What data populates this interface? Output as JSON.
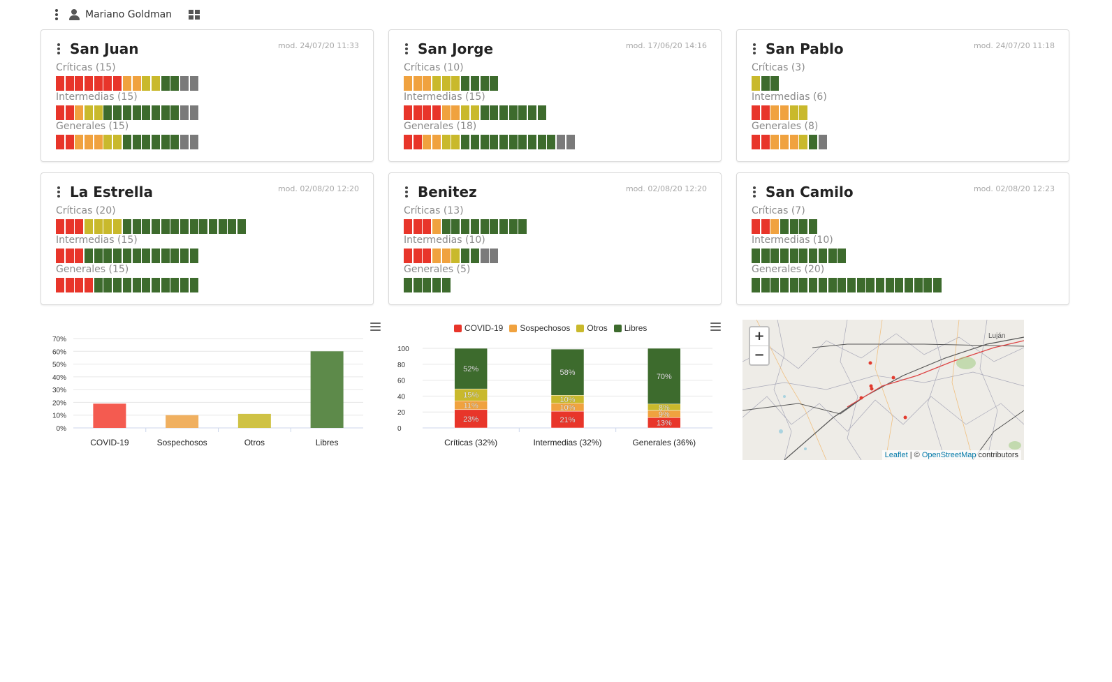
{
  "user": {
    "name": "Mariano Goldman",
    "icon": "user-icon"
  },
  "colors": {
    "red": "#e8352a",
    "orange": "#f0a23f",
    "yellow": "#c9b92c",
    "green": "#3d6b2d",
    "gray": "#7a7a7a"
  },
  "hospitals": [
    {
      "name": "San Juan",
      "modified": "mod. 24/07/20 11:33",
      "rows": [
        {
          "label": "Críticas (15)",
          "beds": [
            "red",
            "red",
            "red",
            "red",
            "red",
            "red",
            "red",
            "orange",
            "orange",
            "yellow",
            "yellow",
            "green",
            "green",
            "gray",
            "gray"
          ]
        },
        {
          "label": "Intermedias (15)",
          "beds": [
            "red",
            "red",
            "orange",
            "yellow",
            "yellow",
            "green",
            "green",
            "green",
            "green",
            "green",
            "green",
            "green",
            "green",
            "gray",
            "gray"
          ]
        },
        {
          "label": "Generales (15)",
          "beds": [
            "red",
            "red",
            "orange",
            "orange",
            "orange",
            "yellow",
            "yellow",
            "green",
            "green",
            "green",
            "green",
            "green",
            "green",
            "gray",
            "gray"
          ]
        }
      ]
    },
    {
      "name": "San Jorge",
      "modified": "mod. 17/06/20 14:16",
      "rows": [
        {
          "label": "Críticas (10)",
          "beds": [
            "orange",
            "orange",
            "orange",
            "yellow",
            "yellow",
            "yellow",
            "green",
            "green",
            "green",
            "green"
          ]
        },
        {
          "label": "Intermedias (15)",
          "beds": [
            "red",
            "red",
            "red",
            "red",
            "orange",
            "orange",
            "yellow",
            "yellow",
            "green",
            "green",
            "green",
            "green",
            "green",
            "green",
            "green"
          ]
        },
        {
          "label": "Generales (18)",
          "beds": [
            "red",
            "red",
            "orange",
            "orange",
            "yellow",
            "yellow",
            "green",
            "green",
            "green",
            "green",
            "green",
            "green",
            "green",
            "green",
            "green",
            "green",
            "gray",
            "gray"
          ]
        }
      ]
    },
    {
      "name": "San Pablo",
      "modified": "mod. 24/07/20 11:18",
      "rows": [
        {
          "label": "Críticas (3)",
          "beds": [
            "yellow",
            "green",
            "green"
          ]
        },
        {
          "label": "Intermedias (6)",
          "beds": [
            "red",
            "red",
            "orange",
            "orange",
            "yellow",
            "yellow"
          ]
        },
        {
          "label": "Generales (8)",
          "beds": [
            "red",
            "red",
            "orange",
            "orange",
            "orange",
            "yellow",
            "green",
            "gray"
          ]
        }
      ]
    },
    {
      "name": "La Estrella",
      "modified": "mod. 02/08/20 12:20",
      "rows": [
        {
          "label": "Críticas (20)",
          "beds": [
            "red",
            "red",
            "red",
            "yellow",
            "yellow",
            "yellow",
            "yellow",
            "green",
            "green",
            "green",
            "green",
            "green",
            "green",
            "green",
            "green",
            "green",
            "green",
            "green",
            "green",
            "green"
          ]
        },
        {
          "label": "Intermedias (15)",
          "beds": [
            "red",
            "red",
            "red",
            "green",
            "green",
            "green",
            "green",
            "green",
            "green",
            "green",
            "green",
            "green",
            "green",
            "green",
            "green"
          ]
        },
        {
          "label": "Generales (15)",
          "beds": [
            "red",
            "red",
            "red",
            "red",
            "green",
            "green",
            "green",
            "green",
            "green",
            "green",
            "green",
            "green",
            "green",
            "green",
            "green"
          ]
        }
      ]
    },
    {
      "name": "Benitez",
      "modified": "mod. 02/08/20 12:20",
      "rows": [
        {
          "label": "Críticas (13)",
          "beds": [
            "red",
            "red",
            "red",
            "orange",
            "green",
            "green",
            "green",
            "green",
            "green",
            "green",
            "green",
            "green",
            "green"
          ]
        },
        {
          "label": "Intermedias (10)",
          "beds": [
            "red",
            "red",
            "red",
            "orange",
            "orange",
            "yellow",
            "green",
            "green",
            "gray",
            "gray"
          ]
        },
        {
          "label": "Generales (5)",
          "beds": [
            "green",
            "green",
            "green",
            "green",
            "green"
          ]
        }
      ]
    },
    {
      "name": "San Camilo",
      "modified": "mod. 02/08/20 12:23",
      "rows": [
        {
          "label": "Críticas (7)",
          "beds": [
            "red",
            "red",
            "orange",
            "green",
            "green",
            "green",
            "green"
          ]
        },
        {
          "label": "Intermedias (10)",
          "beds": [
            "green",
            "green",
            "green",
            "green",
            "green",
            "green",
            "green",
            "green",
            "green",
            "green"
          ]
        },
        {
          "label": "Generales (20)",
          "beds": [
            "green",
            "green",
            "green",
            "green",
            "green",
            "green",
            "green",
            "green",
            "green",
            "green",
            "green",
            "green",
            "green",
            "green",
            "green",
            "green",
            "green",
            "green",
            "green",
            "green"
          ]
        }
      ]
    }
  ],
  "chart_data": [
    {
      "type": "bar",
      "title": "",
      "categories": [
        "COVID-19",
        "Sospechosos",
        "Otros",
        "Libres"
      ],
      "values": [
        19,
        10,
        11,
        60
      ],
      "colors": [
        "#f45b50",
        "#f0b060",
        "#cfc245",
        "#5d8a4a"
      ],
      "yticks": [
        "0%",
        "10%",
        "20%",
        "30%",
        "40%",
        "50%",
        "60%",
        "70%"
      ],
      "ylim": [
        0,
        70
      ],
      "grid": true
    },
    {
      "type": "bar",
      "stacked": true,
      "title": "",
      "categories": [
        "Críticas (32%)",
        "Intermedias (32%)",
        "Generales (36%)"
      ],
      "series": [
        {
          "name": "COVID-19",
          "color": "#e8352a",
          "values": [
            23,
            21,
            13
          ],
          "labels": [
            "23%",
            "21%",
            "13%"
          ]
        },
        {
          "name": "Sospechosos",
          "color": "#f0a23f",
          "values": [
            11,
            10,
            9
          ],
          "labels": [
            "11%",
            "10%",
            "9%"
          ]
        },
        {
          "name": "Otros",
          "color": "#c9b92c",
          "values": [
            15,
            10,
            8
          ],
          "labels": [
            "15%",
            "10%",
            "8%"
          ]
        },
        {
          "name": "Libres",
          "color": "#3d6b2d",
          "values": [
            52,
            58,
            70
          ],
          "labels": [
            "52%",
            "58%",
            "70%"
          ]
        }
      ],
      "yticks": [
        "0",
        "20",
        "40",
        "60",
        "80",
        "100"
      ],
      "ylim": [
        0,
        100
      ],
      "legend": "top",
      "grid": true
    }
  ],
  "map": {
    "zoom_in": "+",
    "zoom_out": "−",
    "town": "Luján",
    "attribution": {
      "leaflet": "Leaflet",
      "separator": " | © ",
      "osm": "OpenStreetMap",
      "suffix": " contributors"
    }
  }
}
